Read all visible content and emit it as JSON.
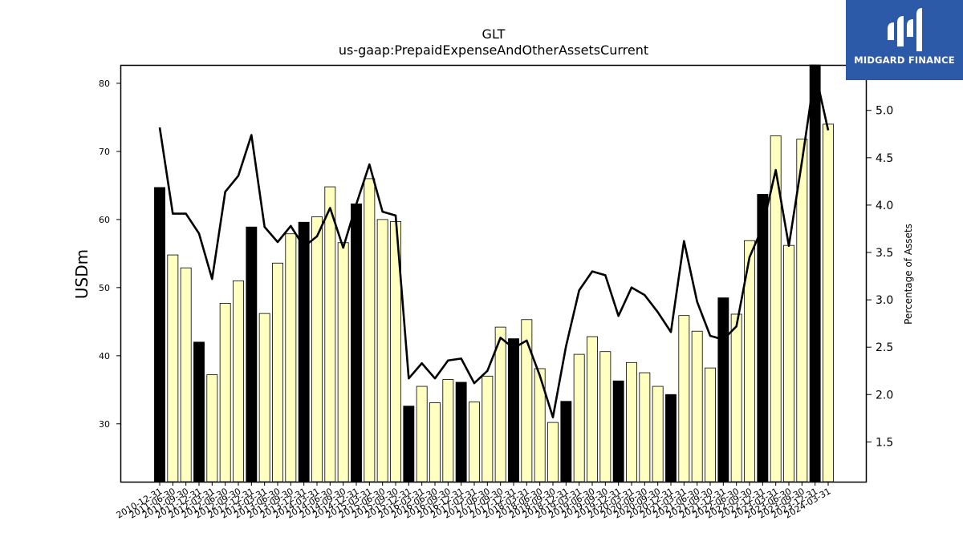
{
  "brand": {
    "name": "MIDGARD FINANCE",
    "color": "#2c5aa8"
  },
  "chart_data": {
    "type": "bar",
    "title": "GLT",
    "subtitle": "us-gaap:PrepaidExpenseAndOtherAssetsCurrent",
    "ylabel": "USDm",
    "y2label": "Percentage of Assets",
    "ylim": [
      21.5,
      82.7
    ],
    "y2lim": [
      1.08,
      5.48
    ],
    "yticks": [
      30,
      40,
      50,
      60,
      70,
      80
    ],
    "y2ticks": [
      "1.5",
      "2.0",
      "2.5",
      "3.0",
      "3.5",
      "4.0",
      "4.5",
      "5.0"
    ],
    "grid": false,
    "colors": {
      "year_end_bar": "#000000",
      "quarter_bar": "#ffffc0",
      "line": "#000000"
    },
    "categories": [
      "2010-12-31",
      "2011-06-30",
      "2011-09-30",
      "2011-12-31",
      "2012-03-31",
      "2012-06-30",
      "2012-09-30",
      "2012-12-31",
      "2013-03-31",
      "2013-06-30",
      "2013-09-30",
      "2013-12-31",
      "2014-03-31",
      "2014-06-30",
      "2014-09-30",
      "2014-12-31",
      "2015-03-31",
      "2015-06-30",
      "2015-09-30",
      "2015-12-31",
      "2016-03-31",
      "2016-06-30",
      "2016-09-30",
      "2016-12-31",
      "2017-03-31",
      "2017-06-30",
      "2017-09-30",
      "2017-12-31",
      "2018-03-31",
      "2018-06-30",
      "2018-09-30",
      "2018-12-31",
      "2019-03-31",
      "2019-06-30",
      "2019-09-30",
      "2019-12-31",
      "2020-03-31",
      "2020-06-30",
      "2020-09-30",
      "2020-12-31",
      "2021-03-31",
      "2021-06-30",
      "2021-09-30",
      "2021-12-31",
      "2022-06-30",
      "2022-09-30",
      "2022-12-31",
      "2023-03-31",
      "2023-06-30",
      "2023-09-30",
      "2023-12-31",
      "2024-03-31"
    ],
    "series": [
      {
        "type": "bar",
        "values": [
          64.7,
          54.8,
          52.9,
          42.0,
          37.2,
          47.7,
          51.0,
          58.9,
          46.2,
          53.6,
          57.9,
          59.6,
          60.4,
          64.8,
          56.6,
          62.3,
          66.0,
          60.0,
          59.7,
          32.6,
          35.5,
          33.1,
          36.5,
          36.1,
          33.2,
          37.0,
          44.2,
          42.5,
          45.3,
          38.1,
          30.2,
          33.3,
          40.2,
          42.8,
          40.6,
          36.3,
          39.0,
          37.5,
          35.5,
          34.3,
          45.9,
          43.6,
          38.2,
          48.5,
          46.1,
          56.9,
          63.7,
          72.3,
          56.2,
          71.8,
          82.7,
          74.0
        ]
      },
      {
        "type": "line",
        "values": [
          4.82,
          3.91,
          3.91,
          3.7,
          3.22,
          4.14,
          4.31,
          4.74,
          3.77,
          3.61,
          3.78,
          3.56,
          3.67,
          3.97,
          3.55,
          4.01,
          4.43,
          3.93,
          3.89,
          2.17,
          2.33,
          2.17,
          2.36,
          2.38,
          2.12,
          2.25,
          2.6,
          2.49,
          2.57,
          2.2,
          1.76,
          2.51,
          3.1,
          3.3,
          3.26,
          2.83,
          3.13,
          3.05,
          2.87,
          2.66,
          3.62,
          2.98,
          2.62,
          2.58,
          2.72,
          3.45,
          3.77,
          4.37,
          3.57,
          4.46,
          5.41,
          4.79
        ]
      }
    ]
  }
}
